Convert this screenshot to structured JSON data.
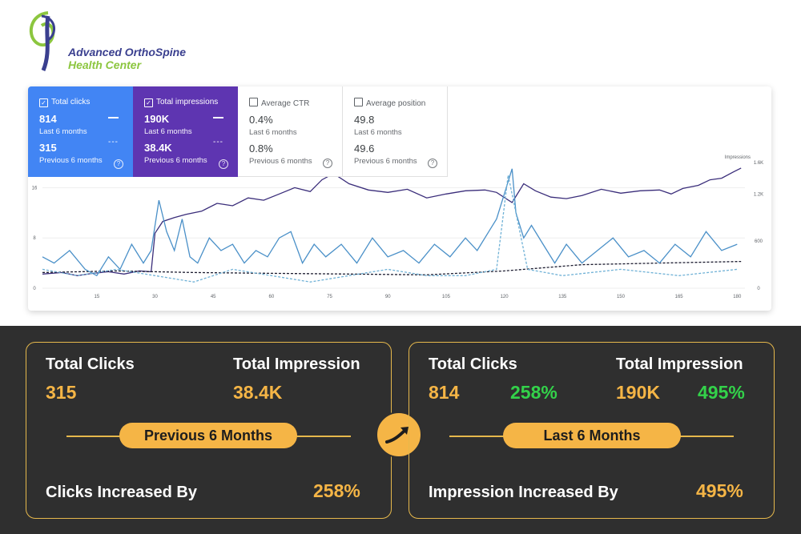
{
  "brand": {
    "line1": "Advanced OrthoSpine",
    "line2": "Health Center",
    "icon": "spine-logo-icon"
  },
  "metrics": [
    {
      "label": "Total clicks",
      "current": "814",
      "current_period": "Last 6 months",
      "previous": "315",
      "previous_period": "Previous 6 months",
      "checked": true,
      "color": "#4285f4"
    },
    {
      "label": "Total impressions",
      "current": "190K",
      "current_period": "Last 6 months",
      "previous": "38.4K",
      "previous_period": "Previous 6 months",
      "checked": true,
      "color": "#5e35b1"
    },
    {
      "label": "Average CTR",
      "current": "0.4%",
      "current_period": "Last 6 months",
      "previous": "0.8%",
      "previous_period": "Previous 6 months",
      "checked": false
    },
    {
      "label": "Average position",
      "current": "49.8",
      "current_period": "Last 6 months",
      "previous": "49.6",
      "previous_period": "Previous 6 months",
      "checked": false
    }
  ],
  "chart_data": {
    "type": "line",
    "x_ticks": [
      "15",
      "30",
      "45",
      "60",
      "75",
      "90",
      "105",
      "120",
      "135",
      "150",
      "165",
      "180"
    ],
    "left_ticks": [
      "16",
      "8",
      "0"
    ],
    "right_axis_title": "Impressions",
    "right_ticks": [
      "1.6K",
      "1.2K",
      "600",
      "0"
    ],
    "xlim": [
      1,
      182
    ],
    "left_ylim": [
      0,
      20
    ],
    "right_ylim": [
      0,
      1600
    ],
    "series": [
      {
        "name": "Impressions (last 6 months)",
        "axis": "right",
        "style": "solid",
        "color": "#3a2d7a",
        "points": [
          [
            1,
            180
          ],
          [
            6,
            200
          ],
          [
            10,
            160
          ],
          [
            14,
            190
          ],
          [
            18,
            210
          ],
          [
            22,
            180
          ],
          [
            26,
            220
          ],
          [
            29,
            210
          ],
          [
            30,
            700
          ],
          [
            32,
            850
          ],
          [
            35,
            900
          ],
          [
            38,
            940
          ],
          [
            42,
            980
          ],
          [
            46,
            1080
          ],
          [
            50,
            1050
          ],
          [
            54,
            1150
          ],
          [
            58,
            1120
          ],
          [
            62,
            1200
          ],
          [
            66,
            1280
          ],
          [
            70,
            1230
          ],
          [
            73,
            1380
          ],
          [
            76,
            1460
          ],
          [
            80,
            1330
          ],
          [
            85,
            1250
          ],
          [
            90,
            1220
          ],
          [
            95,
            1260
          ],
          [
            100,
            1150
          ],
          [
            105,
            1200
          ],
          [
            110,
            1240
          ],
          [
            115,
            1250
          ],
          [
            118,
            1220
          ],
          [
            122,
            1090
          ],
          [
            125,
            1330
          ],
          [
            128,
            1240
          ],
          [
            132,
            1160
          ],
          [
            136,
            1140
          ],
          [
            140,
            1180
          ],
          [
            145,
            1260
          ],
          [
            150,
            1210
          ],
          [
            155,
            1240
          ],
          [
            160,
            1250
          ],
          [
            163,
            1200
          ],
          [
            166,
            1270
          ],
          [
            170,
            1310
          ],
          [
            173,
            1380
          ],
          [
            176,
            1400
          ],
          [
            179,
            1480
          ],
          [
            181,
            1530
          ]
        ]
      },
      {
        "name": "Impressions (previous 6 months)",
        "axis": "right",
        "style": "dashed",
        "color": "#1a1a2e",
        "points": [
          [
            1,
            200
          ],
          [
            20,
            220
          ],
          [
            40,
            200
          ],
          [
            60,
            190
          ],
          [
            80,
            180
          ],
          [
            100,
            170
          ],
          [
            120,
            220
          ],
          [
            140,
            300
          ],
          [
            160,
            320
          ],
          [
            181,
            340
          ]
        ]
      },
      {
        "name": "Clicks (last 6 months)",
        "axis": "left",
        "style": "solid",
        "color": "#4a90c8",
        "points": [
          [
            1,
            5
          ],
          [
            4,
            4
          ],
          [
            8,
            6
          ],
          [
            12,
            3
          ],
          [
            15,
            2
          ],
          [
            18,
            5
          ],
          [
            21,
            3
          ],
          [
            24,
            7
          ],
          [
            27,
            4
          ],
          [
            29,
            6
          ],
          [
            31,
            14
          ],
          [
            33,
            9
          ],
          [
            35,
            6
          ],
          [
            37,
            11
          ],
          [
            39,
            5
          ],
          [
            41,
            4
          ],
          [
            44,
            8
          ],
          [
            47,
            6
          ],
          [
            50,
            7
          ],
          [
            53,
            4
          ],
          [
            56,
            6
          ],
          [
            59,
            5
          ],
          [
            62,
            8
          ],
          [
            65,
            9
          ],
          [
            68,
            4
          ],
          [
            71,
            7
          ],
          [
            74,
            5
          ],
          [
            78,
            7
          ],
          [
            82,
            4
          ],
          [
            86,
            8
          ],
          [
            90,
            5
          ],
          [
            94,
            6
          ],
          [
            98,
            4
          ],
          [
            102,
            7
          ],
          [
            106,
            5
          ],
          [
            110,
            8
          ],
          [
            113,
            6
          ],
          [
            116,
            9
          ],
          [
            118,
            11
          ],
          [
            120,
            15
          ],
          [
            122,
            19
          ],
          [
            123,
            12
          ],
          [
            125,
            8
          ],
          [
            127,
            10
          ],
          [
            130,
            7
          ],
          [
            133,
            4
          ],
          [
            136,
            7
          ],
          [
            140,
            4
          ],
          [
            144,
            6
          ],
          [
            148,
            8
          ],
          [
            152,
            5
          ],
          [
            156,
            6
          ],
          [
            160,
            4
          ],
          [
            164,
            7
          ],
          [
            168,
            5
          ],
          [
            172,
            9
          ],
          [
            176,
            6
          ],
          [
            180,
            7
          ]
        ]
      },
      {
        "name": "Clicks (previous 6 months)",
        "axis": "left",
        "style": "dashed",
        "color": "#6fb1d6",
        "points": [
          [
            1,
            3
          ],
          [
            10,
            2
          ],
          [
            20,
            3
          ],
          [
            30,
            2
          ],
          [
            40,
            1
          ],
          [
            50,
            3
          ],
          [
            60,
            2
          ],
          [
            70,
            1
          ],
          [
            80,
            2
          ],
          [
            90,
            3
          ],
          [
            100,
            2
          ],
          [
            110,
            2
          ],
          [
            118,
            3
          ],
          [
            121,
            18
          ],
          [
            123,
            12
          ],
          [
            126,
            3
          ],
          [
            135,
            2
          ],
          [
            150,
            3
          ],
          [
            165,
            2
          ],
          [
            180,
            3
          ]
        ]
      }
    ]
  },
  "comparison": {
    "previous": {
      "clicks_label": "Total Clicks",
      "clicks_value": "315",
      "impr_label": "Total Impression",
      "impr_value": "38.4K",
      "period_label": "Previous 6 Months",
      "footer_label": "Clicks Increased By",
      "footer_value": "258%"
    },
    "current": {
      "clicks_label": "Total Clicks",
      "clicks_value": "814",
      "clicks_change": "258%",
      "impr_label": "Total Impression",
      "impr_value": "190K",
      "impr_change": "495%",
      "period_label": "Last 6 Months",
      "footer_label": "Impression Increased By",
      "footer_value": "495%"
    },
    "arrow_icon": "trend-arrow-icon"
  }
}
